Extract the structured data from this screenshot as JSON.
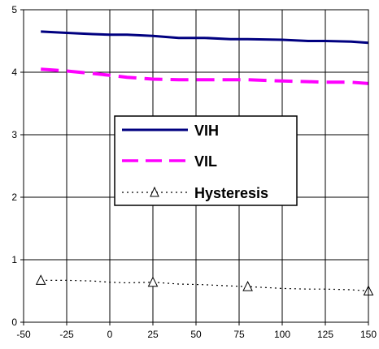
{
  "chart_data": {
    "type": "line",
    "title": "",
    "xlabel": "",
    "ylabel": "",
    "xlim": [
      -50,
      150
    ],
    "ylim": [
      0,
      5
    ],
    "x_ticks": [
      "-50",
      "-25",
      "0",
      "25",
      "50",
      "75",
      "100",
      "125",
      "150"
    ],
    "y_ticks": [
      "0",
      "1",
      "2",
      "3",
      "4",
      "5"
    ],
    "grid": true,
    "legend_position": "center",
    "series": [
      {
        "name": "VIH",
        "color": "#000080",
        "style": "solid",
        "x": [
          -40,
          -25,
          -10,
          0,
          10,
          25,
          40,
          55,
          70,
          80,
          100,
          115,
          125,
          140,
          150
        ],
        "y": [
          4.65,
          4.63,
          4.61,
          4.6,
          4.6,
          4.58,
          4.55,
          4.55,
          4.53,
          4.53,
          4.52,
          4.5,
          4.5,
          4.49,
          4.47
        ]
      },
      {
        "name": "VIL",
        "color": "#FF00FF",
        "style": "dashed",
        "x": [
          -40,
          -25,
          -10,
          0,
          10,
          25,
          40,
          55,
          70,
          80,
          100,
          115,
          125,
          140,
          150
        ],
        "y": [
          4.05,
          4.02,
          3.98,
          3.95,
          3.92,
          3.89,
          3.88,
          3.88,
          3.88,
          3.88,
          3.86,
          3.85,
          3.84,
          3.84,
          3.82
        ]
      },
      {
        "name": "Hysteresis",
        "color": "#000000",
        "style": "dotted",
        "marker": "triangle",
        "x": [
          -40,
          -25,
          -10,
          0,
          10,
          25,
          40,
          55,
          70,
          80,
          100,
          115,
          125,
          140,
          150
        ],
        "y": [
          0.67,
          0.67,
          0.66,
          0.64,
          0.63,
          0.64,
          0.61,
          0.6,
          0.58,
          0.57,
          0.54,
          0.53,
          0.53,
          0.52,
          0.5
        ],
        "marker_x": [
          -40,
          25,
          80,
          150
        ],
        "marker_y": [
          0.67,
          0.64,
          0.57,
          0.5
        ]
      }
    ]
  }
}
